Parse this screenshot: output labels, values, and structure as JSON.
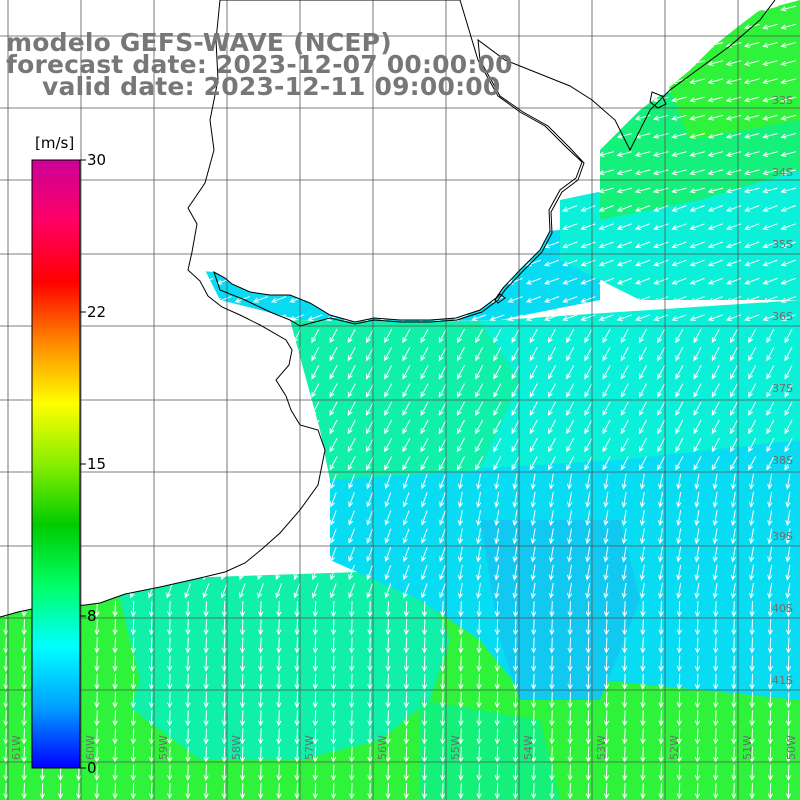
{
  "title": {
    "line1": "modelo GEFS-WAVE (NCEP)",
    "line2": "forecast date: 2023-12-07 00:00:00",
    "line3": "valid date: 2023-12-11 09:00:00"
  },
  "colorbar": {
    "unit": "[m/s]",
    "min": 0,
    "max": 30,
    "ticks": [
      "30",
      "22",
      "15",
      "8",
      "0"
    ],
    "stops": [
      "#0000ff",
      "#00a0ff",
      "#00ffff",
      "#00ff66",
      "#00cc00",
      "#88ee00",
      "#ffff00",
      "#ff8800",
      "#ff0000",
      "#ff0066",
      "#cc0099"
    ]
  },
  "map": {
    "lat_labels": [
      "33S",
      "34S",
      "35S",
      "36S",
      "37S",
      "38S",
      "39S",
      "40S",
      "41S"
    ],
    "lon_labels": [
      "61W",
      "60W",
      "59W",
      "58W",
      "57W",
      "56W",
      "55W",
      "54W",
      "53W",
      "52W",
      "51W",
      "50W"
    ],
    "field_colors": {
      "green": "#2ef33a",
      "green_cyan": "#14f07a",
      "cyan_green": "#10f0a8",
      "cyan": "#0bf0d8",
      "light_blue": "#08dcf2",
      "blue": "#10c8f0",
      "land": "#ffffff",
      "grid": "#555555",
      "coast": "#000000"
    }
  }
}
